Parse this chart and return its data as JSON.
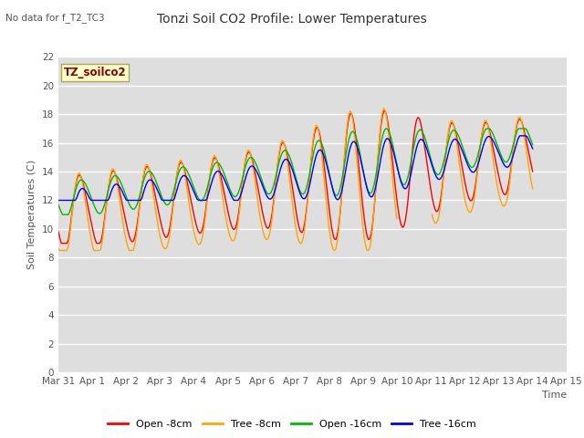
{
  "title": "Tonzi Soil CO2 Profile: Lower Temperatures",
  "subtitle": "No data for f_T2_TC3",
  "xlabel": "Time",
  "ylabel": "Soil Temperatures (C)",
  "xtick_labels": [
    "Mar 31",
    "Apr 1",
    "Apr 2",
    "Apr 3",
    "Apr 4",
    "Apr 5",
    "Apr 6",
    "Apr 7",
    "Apr 8",
    "Apr 9",
    "Apr 10",
    "Apr 11",
    "Apr 12",
    "Apr 13",
    "Apr 14",
    "Apr 15"
  ],
  "ylim": [
    0,
    22
  ],
  "yticks": [
    0,
    2,
    4,
    6,
    8,
    10,
    12,
    14,
    16,
    18,
    20,
    22
  ],
  "legend_label": "TZ_soilco2",
  "legend_entries": [
    "Open -8cm",
    "Tree -8cm",
    "Open -16cm",
    "Tree -16cm"
  ],
  "legend_colors": [
    "#ff0000",
    "#ffa500",
    "#00bb00",
    "#0000ff"
  ],
  "bg_color": "#dedede",
  "line_width": 1.0,
  "num_points": 336,
  "days": 14
}
